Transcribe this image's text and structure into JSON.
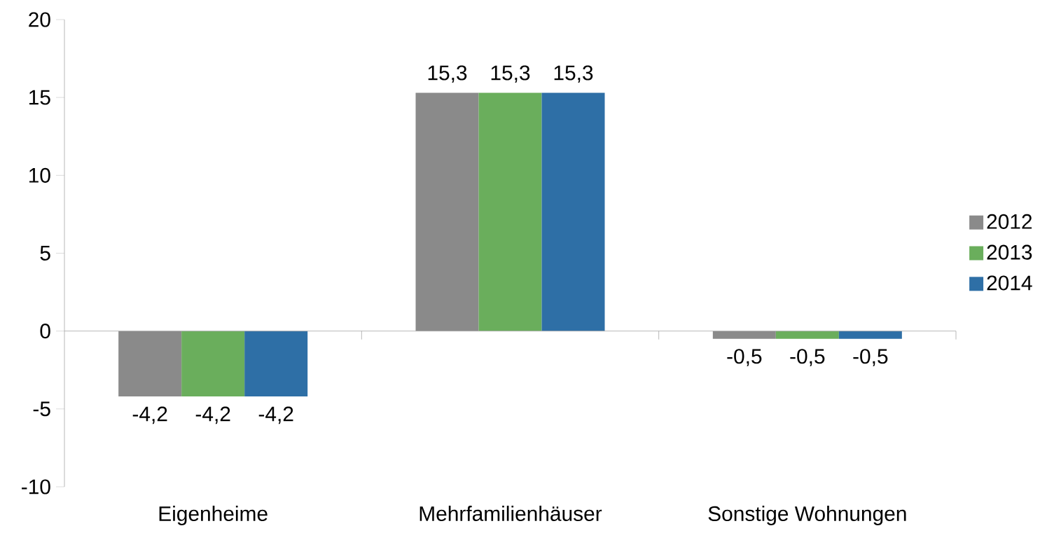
{
  "chart_data": {
    "type": "bar",
    "categories": [
      "Eigenheime",
      "Mehrfamilienhäuser",
      "Sonstige Wohnungen"
    ],
    "series": [
      {
        "name": "2012",
        "color": "#8a8a8a",
        "values": [
          -4.2,
          15.3,
          -0.5
        ],
        "value_labels": [
          "-4,2",
          "15,3",
          "-0,5"
        ]
      },
      {
        "name": "2013",
        "color": "#6aae5c",
        "values": [
          -4.2,
          15.3,
          -0.5
        ],
        "value_labels": [
          "-4,2",
          "15,3",
          "-0,5"
        ]
      },
      {
        "name": "2014",
        "color": "#2e6fa6",
        "values": [
          -4.2,
          15.3,
          -0.5
        ],
        "value_labels": [
          "-4,2",
          "15,3",
          "-0,5"
        ]
      }
    ],
    "ylim": [
      -10,
      20
    ],
    "yticks": [
      -10,
      -5,
      0,
      5,
      10,
      15,
      20
    ],
    "legend": "right"
  }
}
